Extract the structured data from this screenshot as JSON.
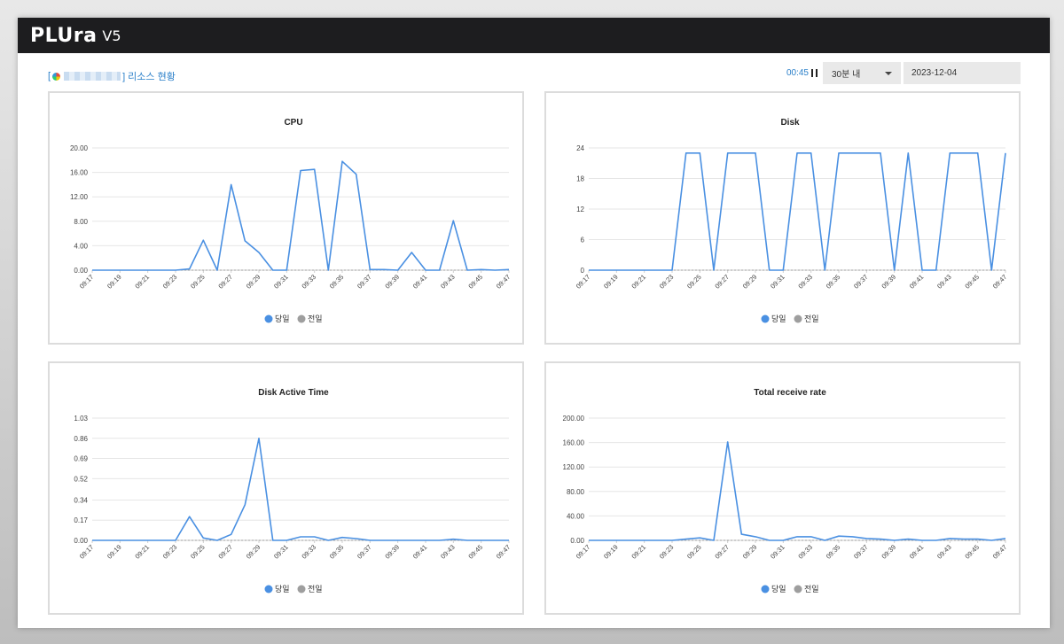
{
  "app": {
    "logo": "PLUra",
    "version": "V5"
  },
  "header": {
    "title_prefix": "[",
    "title_suffix": "] 리소스 현황"
  },
  "controls": {
    "timer": "00:45",
    "range_select": "30분 내",
    "date": "2023-12-04"
  },
  "colors": {
    "today": "#4a90e2",
    "yesterday": "#9e9e9e",
    "grid": "#e6e6e6"
  },
  "legend": {
    "today": "당일",
    "yesterday": "전일"
  },
  "chart_data": [
    {
      "type": "line",
      "title": "CPU",
      "x": [
        "09:17",
        "09:18",
        "09:19",
        "09:20",
        "09:21",
        "09:22",
        "09:23",
        "09:24",
        "09:25",
        "09:26",
        "09:27",
        "09:28",
        "09:29",
        "09:30",
        "09:31",
        "09:32",
        "09:33",
        "09:34",
        "09:35",
        "09:36",
        "09:37",
        "09:38",
        "09:39",
        "09:40",
        "09:41",
        "09:42",
        "09:43",
        "09:44",
        "09:45",
        "09:46",
        "09:47"
      ],
      "x_ticks": [
        "09:17",
        "09:19",
        "09:21",
        "09:23",
        "09:25",
        "09:27",
        "09:29",
        "09:31",
        "09:33",
        "09:35",
        "09:37",
        "09:39",
        "09:41",
        "09:43",
        "09:45",
        "09:47"
      ],
      "y_ticks": [
        "0.00",
        "4.00",
        "8.00",
        "12.00",
        "16.00",
        "20.00"
      ],
      "ylim": [
        0,
        20
      ],
      "series": [
        {
          "name": "당일",
          "values": [
            0,
            0,
            0,
            0,
            0,
            0,
            0,
            0.2,
            4.9,
            0,
            14,
            4.8,
            2.9,
            0,
            0,
            16.3,
            16.5,
            0,
            17.8,
            15.7,
            0.1,
            0.1,
            0,
            2.9,
            0,
            0,
            8.1,
            0,
            0.1,
            0,
            0.1
          ]
        },
        {
          "name": "전일",
          "values": [
            0,
            0,
            0,
            0,
            0,
            0,
            0,
            0,
            0,
            0,
            0,
            0,
            0,
            0,
            0,
            0,
            0,
            0,
            0,
            0,
            0,
            0,
            0,
            0,
            0,
            0,
            0,
            0,
            0,
            0,
            0
          ]
        }
      ]
    },
    {
      "type": "line",
      "title": "Disk",
      "x": [
        "09:17",
        "09:18",
        "09:19",
        "09:20",
        "09:21",
        "09:22",
        "09:23",
        "09:24",
        "09:25",
        "09:26",
        "09:27",
        "09:28",
        "09:29",
        "09:30",
        "09:31",
        "09:32",
        "09:33",
        "09:34",
        "09:35",
        "09:36",
        "09:37",
        "09:38",
        "09:39",
        "09:40",
        "09:41",
        "09:42",
        "09:43",
        "09:44",
        "09:45",
        "09:46",
        "09:47"
      ],
      "x_ticks": [
        "09:17",
        "09:19",
        "09:21",
        "09:23",
        "09:25",
        "09:27",
        "09:29",
        "09:31",
        "09:33",
        "09:35",
        "09:37",
        "09:39",
        "09:41",
        "09:43",
        "09:45",
        "09:47"
      ],
      "y_ticks": [
        "0",
        "6",
        "12",
        "18",
        "24"
      ],
      "ylim": [
        0,
        24
      ],
      "series": [
        {
          "name": "당일",
          "values": [
            0,
            0,
            0,
            0,
            0,
            0,
            0,
            23,
            23,
            0,
            23,
            23,
            23,
            0,
            0,
            23,
            23,
            0,
            23,
            23,
            23,
            23,
            0,
            23,
            0,
            0,
            23,
            23,
            23,
            0,
            23
          ]
        },
        {
          "name": "전일",
          "values": [
            0,
            0,
            0,
            0,
            0,
            0,
            0,
            0,
            0,
            0,
            0,
            0,
            0,
            0,
            0,
            0,
            0,
            0,
            0,
            0,
            0,
            0,
            0,
            0,
            0,
            0,
            0,
            0,
            0,
            0,
            0
          ]
        }
      ]
    },
    {
      "type": "line",
      "title": "Disk Active Time",
      "x": [
        "09:17",
        "09:18",
        "09:19",
        "09:20",
        "09:21",
        "09:22",
        "09:23",
        "09:24",
        "09:25",
        "09:26",
        "09:27",
        "09:28",
        "09:29",
        "09:30",
        "09:31",
        "09:32",
        "09:33",
        "09:34",
        "09:35",
        "09:36",
        "09:37",
        "09:38",
        "09:39",
        "09:40",
        "09:41",
        "09:42",
        "09:43",
        "09:44",
        "09:45",
        "09:46",
        "09:47"
      ],
      "x_ticks": [
        "09:17",
        "09:19",
        "09:21",
        "09:23",
        "09:25",
        "09:27",
        "09:29",
        "09:31",
        "09:33",
        "09:35",
        "09:37",
        "09:39",
        "09:41",
        "09:43",
        "09:45",
        "09:47"
      ],
      "y_ticks": [
        "0.00",
        "0.17",
        "0.34",
        "0.52",
        "0.69",
        "0.86",
        "1.03"
      ],
      "ylim": [
        0,
        1.03
      ],
      "series": [
        {
          "name": "당일",
          "values": [
            0,
            0,
            0,
            0,
            0,
            0,
            0,
            0.2,
            0.02,
            0,
            0.05,
            0.3,
            0.86,
            0,
            0,
            0.03,
            0.03,
            0,
            0.025,
            0.015,
            0,
            0,
            0,
            0,
            0,
            0,
            0.01,
            0,
            0,
            0,
            0
          ]
        },
        {
          "name": "전일",
          "values": [
            0,
            0,
            0,
            0,
            0,
            0,
            0,
            0,
            0,
            0,
            0,
            0,
            0,
            0,
            0,
            0,
            0,
            0,
            0,
            0,
            0,
            0,
            0,
            0,
            0,
            0,
            0,
            0,
            0,
            0,
            0
          ]
        }
      ]
    },
    {
      "type": "line",
      "title": "Total receive rate",
      "x": [
        "09:17",
        "09:18",
        "09:19",
        "09:20",
        "09:21",
        "09:22",
        "09:23",
        "09:24",
        "09:25",
        "09:26",
        "09:27",
        "09:28",
        "09:29",
        "09:30",
        "09:31",
        "09:32",
        "09:33",
        "09:34",
        "09:35",
        "09:36",
        "09:37",
        "09:38",
        "09:39",
        "09:40",
        "09:41",
        "09:42",
        "09:43",
        "09:44",
        "09:45",
        "09:46",
        "09:47"
      ],
      "x_ticks": [
        "09:17",
        "09:19",
        "09:21",
        "09:23",
        "09:25",
        "09:27",
        "09:29",
        "09:31",
        "09:33",
        "09:35",
        "09:37",
        "09:39",
        "09:41",
        "09:43",
        "09:45",
        "09:47"
      ],
      "y_ticks": [
        "0.00",
        "40.00",
        "80.00",
        "120.00",
        "160.00",
        "200.00"
      ],
      "ylim": [
        0,
        200
      ],
      "series": [
        {
          "name": "당일",
          "values": [
            0,
            0,
            0,
            0,
            0,
            0,
            0,
            2,
            4,
            0,
            161,
            10,
            6,
            0,
            0,
            6,
            6,
            0,
            7,
            6,
            3,
            2,
            0,
            2,
            0,
            0,
            3,
            2,
            2,
            0,
            3
          ]
        },
        {
          "name": "전일",
          "values": [
            0,
            0,
            0,
            0,
            0,
            0,
            0,
            0,
            0,
            0,
            0,
            0,
            0,
            0,
            0,
            0,
            0,
            0,
            0,
            0,
            0,
            0,
            0,
            0,
            0,
            0,
            0,
            0,
            0,
            0,
            0
          ]
        }
      ]
    }
  ]
}
